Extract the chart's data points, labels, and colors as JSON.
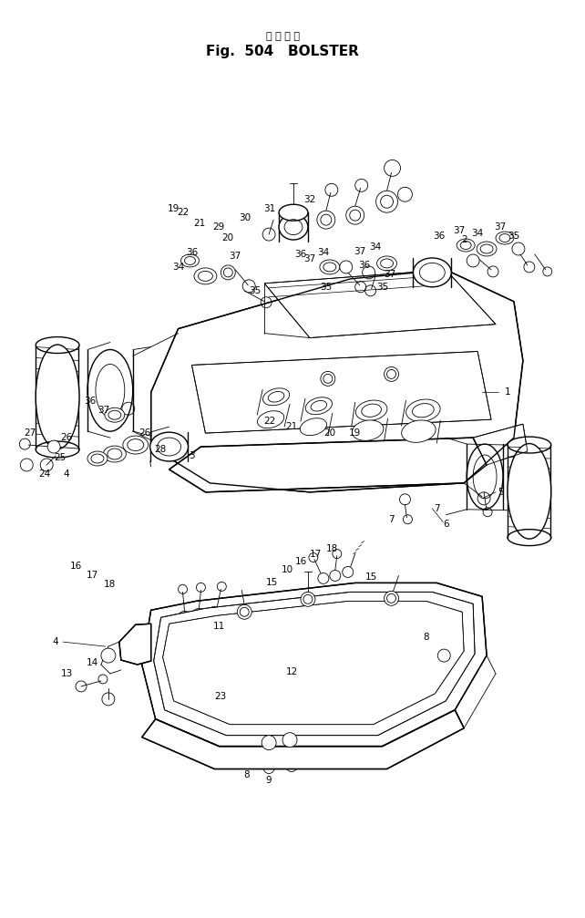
{
  "title_japanese": "ボ ル ス タ",
  "title_english": "Fig.  504   BOLSTER",
  "bg_color": "#ffffff",
  "line_color": "#000000",
  "fig_width": 6.42,
  "fig_height": 10.07,
  "dpi": 100
}
